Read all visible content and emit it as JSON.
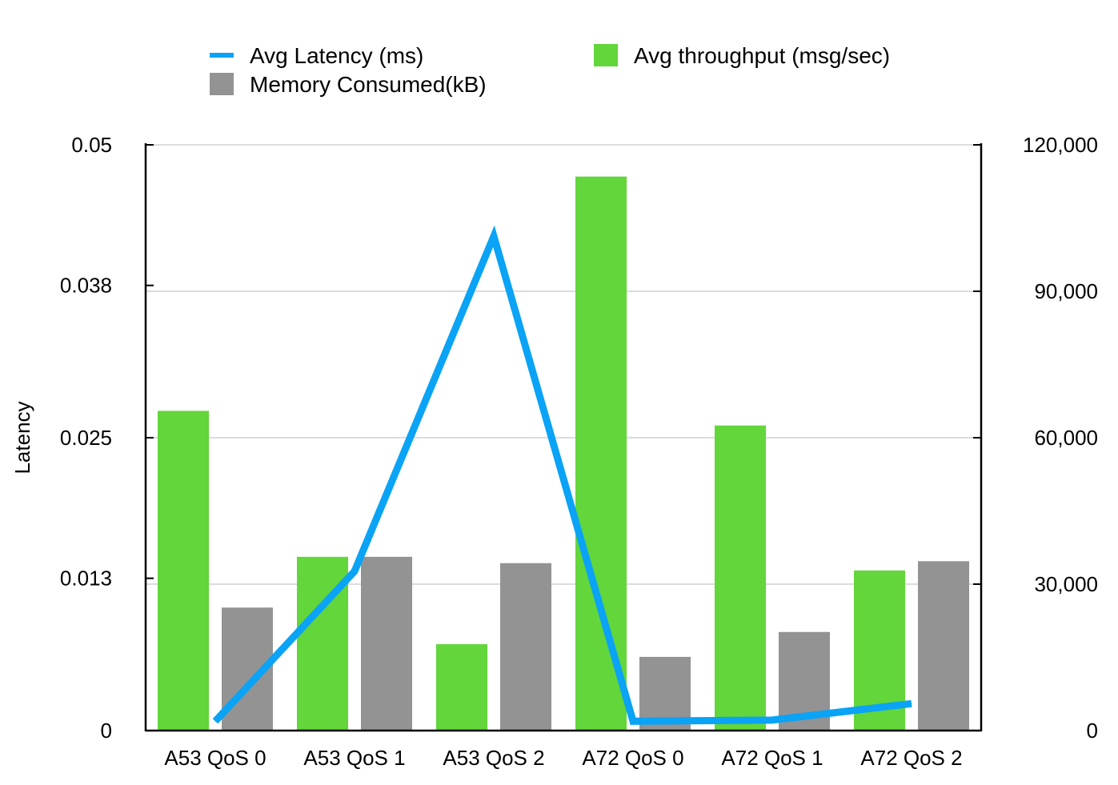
{
  "chart_data": {
    "type": "bar",
    "categories": [
      "A53 QoS 0",
      "A53 QoS 1",
      "A53 QoS 2",
      "A72 QoS 0",
      "A72 QoS 1",
      "A72 QoS 2"
    ],
    "series": [
      {
        "name": "Avg throughput (msg/sec)",
        "type": "bar",
        "axis": "right",
        "color": "#62d63a",
        "values": [
          65500,
          35600,
          17700,
          113500,
          62500,
          32800
        ]
      },
      {
        "name": "Memory Consumed(kB)",
        "type": "bar",
        "axis": "right",
        "color": "#939393",
        "values": [
          25200,
          35600,
          34300,
          15100,
          20200,
          34700
        ]
      },
      {
        "name": "Avg Latency (ms)",
        "type": "line",
        "axis": "left",
        "color": "#0aa3f5",
        "values": [
          0.0008,
          0.0136,
          0.0422,
          0.0008,
          0.0009,
          0.0023
        ]
      }
    ],
    "y_left": {
      "label": "Latency",
      "range": [
        0,
        0.05
      ],
      "ticks": [
        0,
        0.013,
        0.025,
        0.038,
        0.05
      ],
      "tick_labels": [
        "0",
        "0.013",
        "0.025",
        "0.038",
        "0.05"
      ]
    },
    "y_right": {
      "label": "",
      "range": [
        0,
        120000
      ],
      "ticks": [
        0,
        30000,
        60000,
        90000,
        120000
      ],
      "tick_labels": [
        "0",
        "30,000",
        "60,000",
        "90,000",
        "120,000"
      ]
    },
    "grid": true,
    "legend": {
      "position": "top",
      "items": [
        {
          "label": "Avg Latency (ms)",
          "marker": "line",
          "color": "#0aa3f5"
        },
        {
          "label": "Avg throughput (msg/sec)",
          "marker": "square",
          "color": "#62d63a"
        },
        {
          "label": "Memory Consumed(kB)",
          "marker": "square",
          "color": "#939393"
        }
      ]
    }
  }
}
